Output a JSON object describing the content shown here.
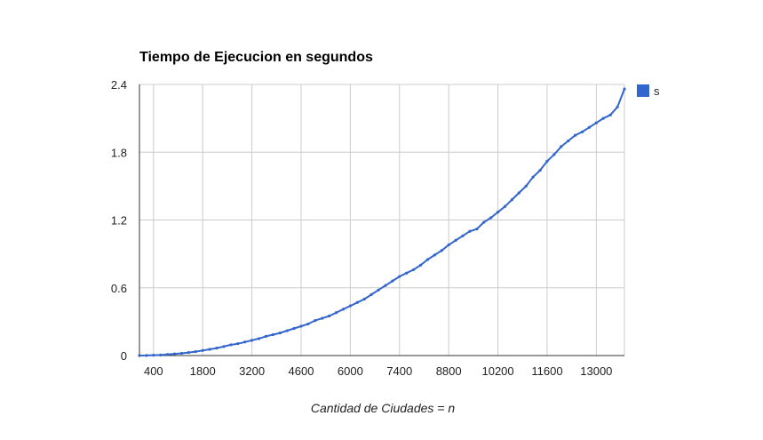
{
  "colors": {
    "series": "#3366cc",
    "grid": "#cccccc",
    "axis": "#333333"
  },
  "chart_data": {
    "type": "line",
    "title": "Tiempo de Ejecucion en segundos",
    "xlabel_prefix": "Cantidad de Ciudades = ",
    "xlabel_var": "n",
    "ylabel": "",
    "xlim": [
      0,
      13800
    ],
    "ylim": [
      0,
      2.4
    ],
    "x_ticks": [
      400,
      1800,
      3200,
      4600,
      6000,
      7400,
      8800,
      10200,
      11600,
      13000
    ],
    "y_ticks": [
      0,
      0.6,
      1.2,
      1.8,
      2.4
    ],
    "y_tick_labels": [
      "0",
      "0.6",
      "1.2",
      "1.8",
      "2.4"
    ],
    "grid": true,
    "legend": "right",
    "series": [
      {
        "name": "s",
        "x": [
          0,
          200,
          400,
          600,
          800,
          1000,
          1200,
          1400,
          1600,
          1800,
          2000,
          2200,
          2400,
          2600,
          2800,
          3000,
          3200,
          3400,
          3600,
          3800,
          4000,
          4200,
          4400,
          4600,
          4800,
          5000,
          5200,
          5400,
          5600,
          5800,
          6000,
          6200,
          6400,
          6600,
          6800,
          7000,
          7200,
          7400,
          7600,
          7800,
          8000,
          8200,
          8400,
          8600,
          8800,
          9000,
          9200,
          9400,
          9600,
          9800,
          10000,
          10200,
          10400,
          10600,
          10800,
          11000,
          11200,
          11400,
          11600,
          11800,
          12000,
          12200,
          12400,
          12600,
          12800,
          13000,
          13200,
          13400,
          13600,
          13800
        ],
        "values": [
          0.0,
          0.001,
          0.003,
          0.005,
          0.01,
          0.015,
          0.02,
          0.027,
          0.035,
          0.045,
          0.055,
          0.066,
          0.08,
          0.095,
          0.105,
          0.12,
          0.135,
          0.15,
          0.17,
          0.185,
          0.2,
          0.22,
          0.24,
          0.26,
          0.28,
          0.31,
          0.33,
          0.35,
          0.38,
          0.41,
          0.44,
          0.47,
          0.5,
          0.54,
          0.58,
          0.62,
          0.66,
          0.7,
          0.73,
          0.76,
          0.8,
          0.85,
          0.89,
          0.93,
          0.98,
          1.02,
          1.06,
          1.1,
          1.12,
          1.18,
          1.22,
          1.27,
          1.32,
          1.38,
          1.44,
          1.5,
          1.58,
          1.64,
          1.72,
          1.78,
          1.85,
          1.9,
          1.95,
          1.98,
          2.02,
          2.06,
          2.1,
          2.13,
          2.2,
          2.36
        ]
      }
    ]
  }
}
